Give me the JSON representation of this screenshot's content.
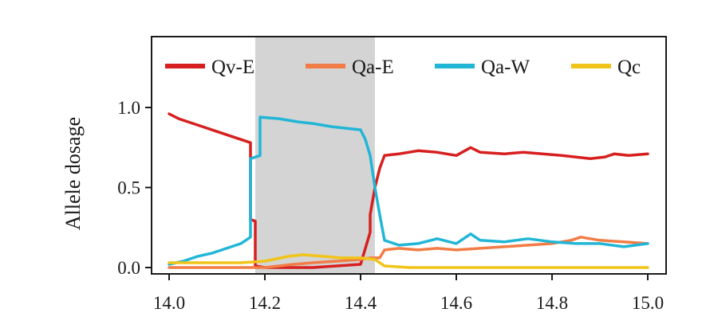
{
  "chart_data": {
    "type": "line",
    "xlabel": "",
    "ylabel": "Allele dosage",
    "xlim": [
      14.0,
      15.0
    ],
    "ylim": [
      0.0,
      1.0
    ],
    "x_ticks": [
      "14.0",
      "14.2",
      "14.4",
      "14.6",
      "14.8",
      "15.0"
    ],
    "y_ticks": [
      "0.0",
      "0.5",
      "1.0"
    ],
    "grid": false,
    "legend_position": "top",
    "highlight_region": {
      "x_start": 14.18,
      "x_end": 14.43,
      "color": "#d4d4d4"
    },
    "series": [
      {
        "name": "Qv-E",
        "color": "#d71f1f",
        "points": [
          [
            14.0,
            0.96
          ],
          [
            14.02,
            0.93
          ],
          [
            14.04,
            0.91
          ],
          [
            14.06,
            0.89
          ],
          [
            14.08,
            0.87
          ],
          [
            14.1,
            0.85
          ],
          [
            14.12,
            0.83
          ],
          [
            14.14,
            0.81
          ],
          [
            14.16,
            0.79
          ],
          [
            14.17,
            0.78
          ],
          [
            14.17,
            0.3
          ],
          [
            14.18,
            0.29
          ],
          [
            14.18,
            0.01
          ],
          [
            14.2,
            0.0
          ],
          [
            14.3,
            0.0
          ],
          [
            14.4,
            0.02
          ],
          [
            14.41,
            0.12
          ],
          [
            14.42,
            0.22
          ],
          [
            14.42,
            0.33
          ],
          [
            14.43,
            0.5
          ],
          [
            14.44,
            0.62
          ],
          [
            14.45,
            0.7
          ],
          [
            14.48,
            0.71
          ],
          [
            14.52,
            0.73
          ],
          [
            14.56,
            0.72
          ],
          [
            14.6,
            0.7
          ],
          [
            14.63,
            0.75
          ],
          [
            14.65,
            0.72
          ],
          [
            14.7,
            0.71
          ],
          [
            14.74,
            0.72
          ],
          [
            14.78,
            0.71
          ],
          [
            14.82,
            0.7
          ],
          [
            14.85,
            0.69
          ],
          [
            14.88,
            0.68
          ],
          [
            14.91,
            0.69
          ],
          [
            14.93,
            0.71
          ],
          [
            14.96,
            0.7
          ],
          [
            15.0,
            0.71
          ]
        ]
      },
      {
        "name": "Qa-E",
        "color": "#f27c45",
        "points": [
          [
            14.0,
            0.0
          ],
          [
            14.1,
            0.0
          ],
          [
            14.2,
            0.0
          ],
          [
            14.26,
            0.02
          ],
          [
            14.3,
            0.03
          ],
          [
            14.35,
            0.04
          ],
          [
            14.4,
            0.05
          ],
          [
            14.42,
            0.06
          ],
          [
            14.44,
            0.06
          ],
          [
            14.45,
            0.11
          ],
          [
            14.48,
            0.12
          ],
          [
            14.52,
            0.11
          ],
          [
            14.56,
            0.12
          ],
          [
            14.6,
            0.11
          ],
          [
            14.65,
            0.12
          ],
          [
            14.7,
            0.13
          ],
          [
            14.75,
            0.14
          ],
          [
            14.8,
            0.15
          ],
          [
            14.84,
            0.17
          ],
          [
            14.86,
            0.19
          ],
          [
            14.88,
            0.18
          ],
          [
            14.9,
            0.17
          ],
          [
            14.95,
            0.16
          ],
          [
            15.0,
            0.15
          ]
        ]
      },
      {
        "name": "Qa-W",
        "color": "#21b6d6",
        "points": [
          [
            14.0,
            0.02
          ],
          [
            14.03,
            0.04
          ],
          [
            14.06,
            0.07
          ],
          [
            14.09,
            0.09
          ],
          [
            14.12,
            0.12
          ],
          [
            14.15,
            0.15
          ],
          [
            14.17,
            0.19
          ],
          [
            14.17,
            0.68
          ],
          [
            14.19,
            0.7
          ],
          [
            14.19,
            0.94
          ],
          [
            14.23,
            0.93
          ],
          [
            14.27,
            0.91
          ],
          [
            14.3,
            0.9
          ],
          [
            14.34,
            0.88
          ],
          [
            14.37,
            0.87
          ],
          [
            14.4,
            0.86
          ],
          [
            14.41,
            0.8
          ],
          [
            14.42,
            0.7
          ],
          [
            14.43,
            0.5
          ],
          [
            14.44,
            0.33
          ],
          [
            14.45,
            0.17
          ],
          [
            14.48,
            0.14
          ],
          [
            14.52,
            0.15
          ],
          [
            14.56,
            0.18
          ],
          [
            14.6,
            0.15
          ],
          [
            14.63,
            0.21
          ],
          [
            14.65,
            0.17
          ],
          [
            14.7,
            0.16
          ],
          [
            14.75,
            0.18
          ],
          [
            14.8,
            0.16
          ],
          [
            14.85,
            0.15
          ],
          [
            14.9,
            0.15
          ],
          [
            14.95,
            0.13
          ],
          [
            15.0,
            0.15
          ]
        ]
      },
      {
        "name": "Qc",
        "color": "#f0c419",
        "points": [
          [
            14.0,
            0.03
          ],
          [
            14.05,
            0.03
          ],
          [
            14.1,
            0.03
          ],
          [
            14.15,
            0.03
          ],
          [
            14.2,
            0.04
          ],
          [
            14.25,
            0.07
          ],
          [
            14.28,
            0.08
          ],
          [
            14.32,
            0.07
          ],
          [
            14.36,
            0.06
          ],
          [
            14.4,
            0.06
          ],
          [
            14.43,
            0.05
          ],
          [
            14.45,
            0.01
          ],
          [
            14.5,
            0.0
          ],
          [
            15.0,
            0.0
          ]
        ]
      }
    ]
  }
}
